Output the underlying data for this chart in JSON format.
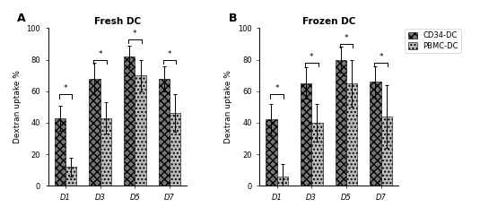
{
  "panel_A_title": "Fresh DC",
  "panel_B_title": "Frozen DC",
  "panel_A_label": "A",
  "panel_B_label": "B",
  "categories": [
    "D1",
    "D3",
    "D5",
    "D7"
  ],
  "ylabel": "Dextran uptake %",
  "ylim": [
    0,
    100
  ],
  "yticks": [
    0,
    20,
    40,
    60,
    80,
    100
  ],
  "fresh_cd34": [
    43,
    68,
    82,
    68
  ],
  "fresh_cd34_err": [
    8,
    10,
    7,
    8
  ],
  "fresh_pbmc": [
    12,
    43,
    70,
    46
  ],
  "fresh_pbmc_err": [
    6,
    10,
    10,
    12
  ],
  "frozen_cd34": [
    42,
    65,
    80,
    66
  ],
  "frozen_cd34_err": [
    10,
    10,
    8,
    10
  ],
  "frozen_pbmc": [
    6,
    40,
    65,
    44
  ],
  "frozen_pbmc_err": [
    8,
    12,
    15,
    20
  ],
  "cd34_color": "#777777",
  "pbmc_color": "#bbbbbb",
  "cd34_hatch": "xxxx",
  "pbmc_hatch": "....",
  "legend_cd34": "CD34-DC",
  "legend_pbmc": "PBMC-DC",
  "bar_width": 0.32,
  "title_fontsize": 7.5,
  "label_fontsize": 6.5,
  "tick_fontsize": 6,
  "legend_fontsize": 6,
  "significance_pairs_A": [
    [
      0,
      "*",
      58
    ],
    [
      1,
      "*",
      80
    ],
    [
      2,
      "*",
      93
    ],
    [
      3,
      "*",
      80
    ]
  ],
  "significance_pairs_B": [
    [
      0,
      "*",
      58
    ],
    [
      1,
      "*",
      78
    ],
    [
      2,
      "*",
      90
    ],
    [
      3,
      "*",
      78
    ]
  ]
}
